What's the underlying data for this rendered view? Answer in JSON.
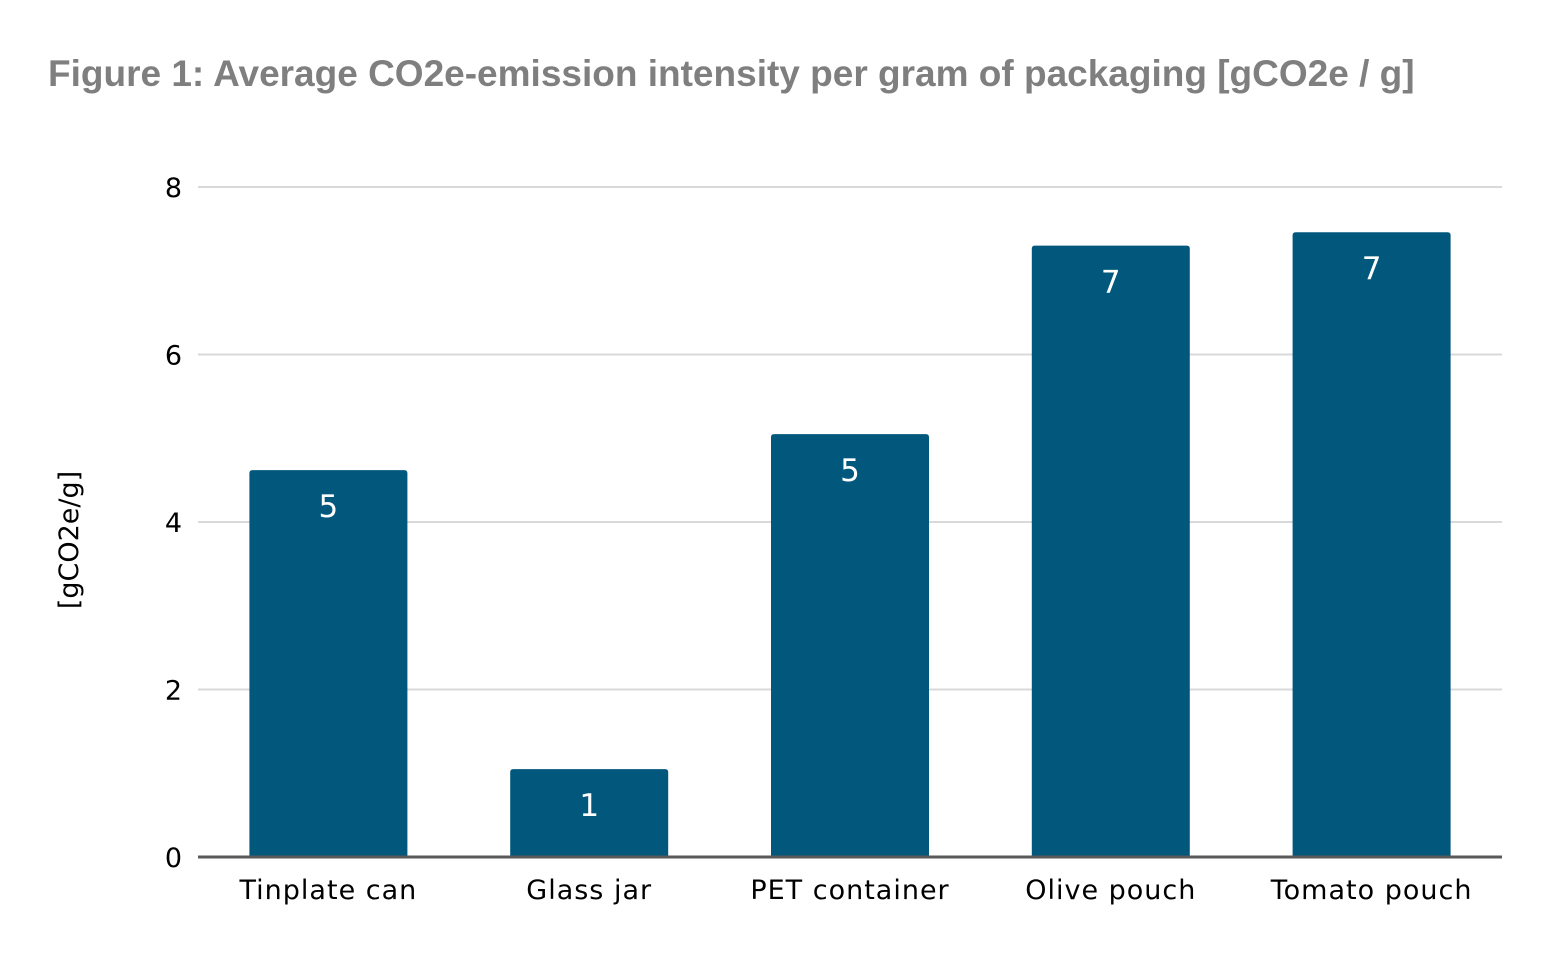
{
  "chart_data": {
    "type": "bar",
    "title": "Figure 1: Average CO2e-emission intensity per gram of packaging [gCO2e / g]",
    "xlabel": "",
    "ylabel": "[gCO2e/g]",
    "categories": [
      "Tinplate can",
      "Glass jar",
      "PET container",
      "Olive pouch",
      "Tomato pouch"
    ],
    "values": [
      4.62,
      1.05,
      5.05,
      7.3,
      7.46
    ],
    "data_labels": [
      "5",
      "1",
      "5",
      "7",
      "7"
    ],
    "ylim": [
      0,
      8
    ],
    "yticks": [
      "0",
      "2",
      "4",
      "6",
      "8"
    ],
    "grid": true,
    "legend": "none",
    "colors": {
      "bar": "#02587c",
      "grid": "#d9d9d9",
      "axis": "#595959",
      "title": "#7f7f7f"
    }
  }
}
